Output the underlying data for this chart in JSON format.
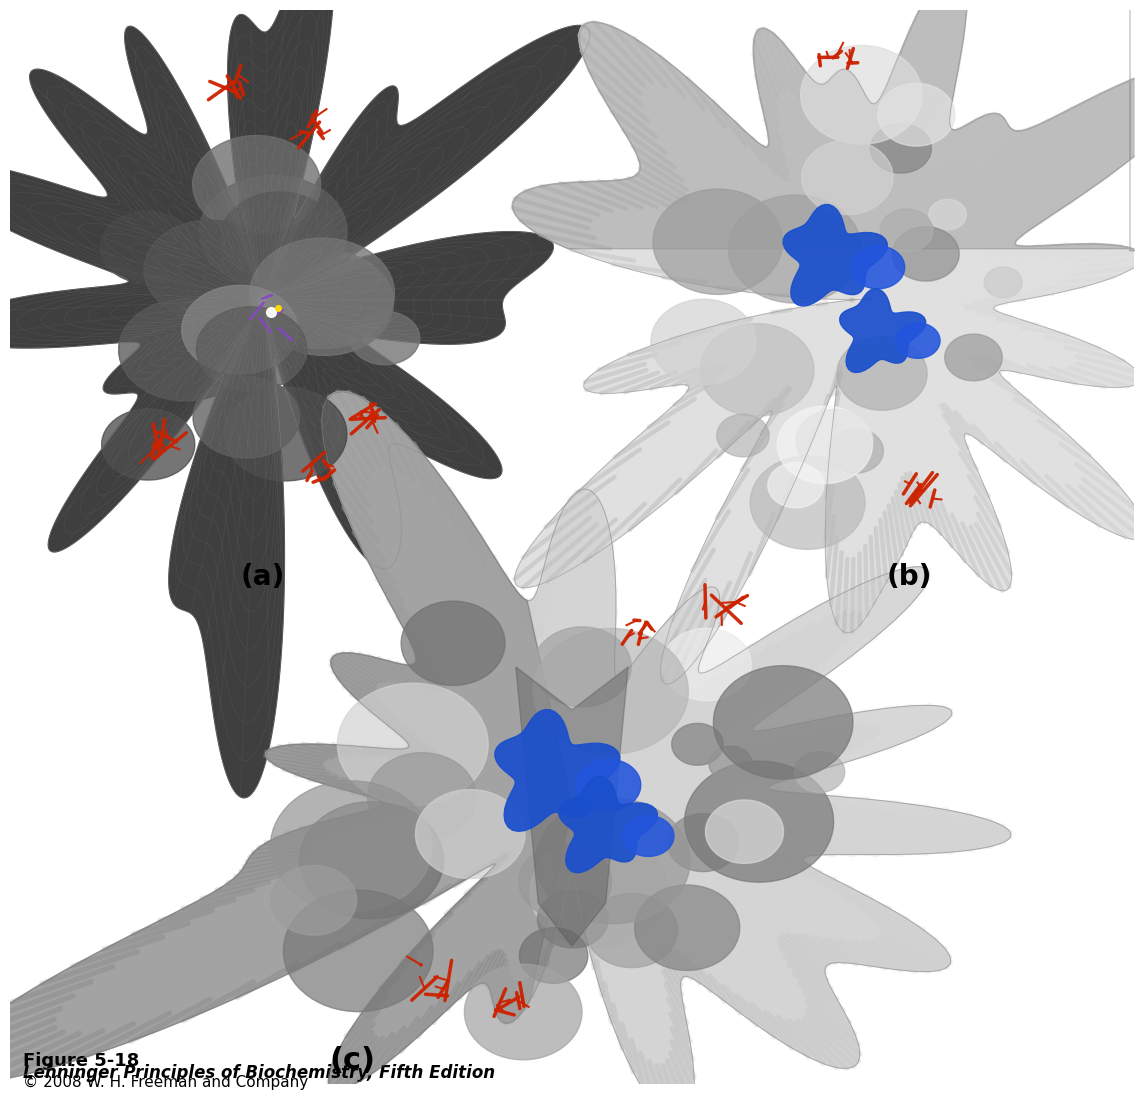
{
  "figure_title": "Figure 5-18",
  "figure_subtitle": "Lehninger Principles of Biochemistry, Fifth Edition",
  "figure_copyright": "© 2008 W. H. Freeman and Company",
  "panel_labels": [
    "(a)",
    "(b)",
    "(c)"
  ],
  "background_color": "#ffffff",
  "label_fontsize": 20,
  "title_fontsize": 13,
  "subtitle_fontsize": 12,
  "copyright_fontsize": 11
}
